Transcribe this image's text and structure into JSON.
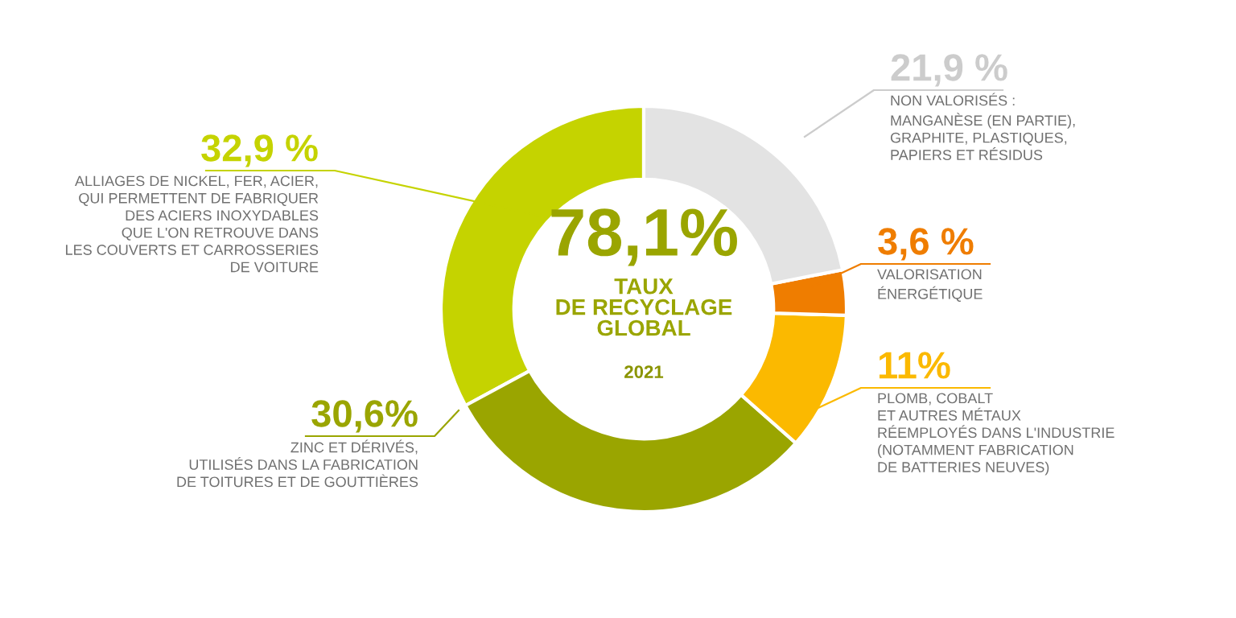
{
  "chart_data": {
    "type": "donut",
    "categories": [
      "ALLIAGES DE NICKEL, FER, ACIER,\nQUI PERMETTENT DE FABRIQUER\nDES ACIERS INOXYDABLES\nQUE L'ON RETROUVE DANS\nLES COUVERTS ET CARROSSERIES\nDE VOITURE",
      "ZINC ET DÉRIVÉS,\nUTILISÉS DANS LA FABRICATION\nDE TOITURES ET DE GOUTTIÈRES",
      "PLOMB, COBALT\nET AUTRES MÉTAUX\nRÉEMPLOYÉS DANS L'INDUSTRIE\n(NOTAMMENT FABRICATION\nDE BATTERIES NEUVES)",
      "VALORISATION\nÉNERGÉTIQUE",
      "NON VALORISÉS :\nMANGANÈSE (EN PARTIE),\nGRAPHITE, PLASTIQUES,\nPAPIERS ET RÉSIDUS"
    ],
    "values": [
      32.9,
      30.6,
      11,
      3.6,
      21.9
    ],
    "value_labels": [
      "32,9 %",
      "30,6%",
      "11%",
      "3,6 %",
      "21,9 %"
    ],
    "colors": [
      "#c5d300",
      "#9aa500",
      "#fbb900",
      "#ef7d00",
      "#e3e3e3"
    ],
    "annotations": [
      "78,1%",
      "TAUX\nDE RECYCLAGE\nGLOBAL",
      "2021"
    ]
  }
}
